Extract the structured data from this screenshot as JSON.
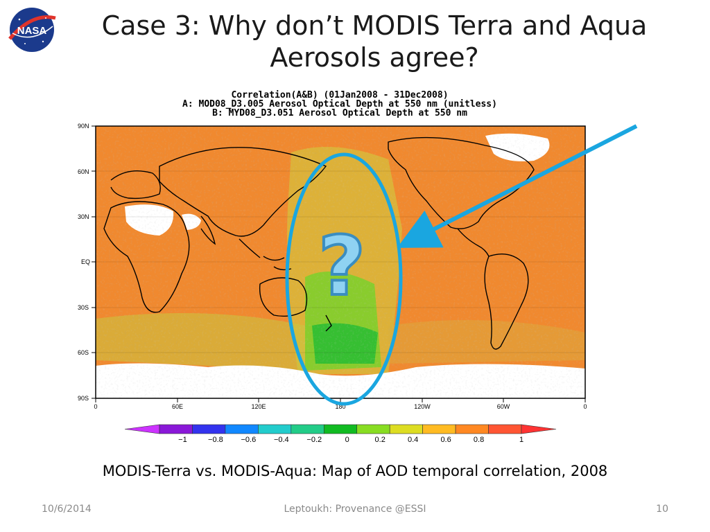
{
  "slide": {
    "title_line1": "Case 3: Why don’t MODIS Terra and Aqua",
    "title_line2": "Aerosols agree?",
    "caption": "MODIS-Terra vs. MODIS-Aqua: Map of AOD temporal correlation, 2008",
    "footer_date": "10/6/2014",
    "footer_center": "Leptoukh: Provenance  @ESSI",
    "footer_page": "10",
    "logo_text": "NASA"
  },
  "map": {
    "title_lines": [
      "Correlation(A&B) (01Jan2008 - 31Dec2008)",
      "A: MOD08_D3.005 Aerosol Optical Depth at 550 nm (unitless)",
      "B: MYD08_D3.051 Aerosol Optical Depth at 550 nm"
    ],
    "lat_labels": [
      "90N",
      "60N",
      "30N",
      "EQ",
      "30S",
      "60S",
      "90S"
    ],
    "lon_labels": [
      "0",
      "60E",
      "120E",
      "180",
      "120W",
      "60W",
      "0"
    ],
    "annotation_symbol": "?",
    "colorbar": {
      "labels": [
        "-1",
        "-0.8",
        "-0.6",
        "-0.4",
        "-0.2",
        "0",
        "0.2",
        "0.4",
        "0.6",
        "0.8",
        "1"
      ],
      "colors": [
        "#cc33ff",
        "#8a18d8",
        "#3333ee",
        "#1188ff",
        "#22cccc",
        "#22cc88",
        "#11bb22",
        "#88dd22",
        "#dddd22",
        "#ffbb22",
        "#ff8822",
        "#ff5533",
        "#ff3333"
      ]
    },
    "colors": {
      "ocean": "#f0892f",
      "land_outline": "#000000",
      "highlight_ellipse": "#1aa6e0",
      "arrow": "#1aa6e0"
    }
  }
}
